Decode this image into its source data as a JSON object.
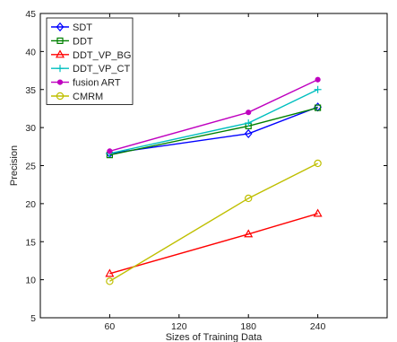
{
  "chart_data": {
    "type": "line",
    "xlabel": "Sizes of Training Data",
    "ylabel": "Precision",
    "xlim": [
      0,
      300
    ],
    "ylim": [
      5,
      45
    ],
    "xticks": [
      60,
      120,
      180,
      240
    ],
    "yticks": [
      5,
      10,
      15,
      20,
      25,
      30,
      35,
      40,
      45
    ],
    "grid": false,
    "legend_position": "top-left",
    "x": [
      60,
      180,
      240
    ],
    "series": [
      {
        "name": "SDT",
        "values": [
          26.6,
          29.2,
          32.7
        ],
        "color": "#0000ff",
        "marker": "diamond"
      },
      {
        "name": "DDT",
        "values": [
          26.4,
          30.2,
          32.6
        ],
        "color": "#008000",
        "marker": "square"
      },
      {
        "name": "DDT_VP_BG",
        "values": [
          10.8,
          16.0,
          18.7
        ],
        "color": "#ff0000",
        "marker": "triangle"
      },
      {
        "name": "DDT_VP_CT",
        "values": [
          26.6,
          30.6,
          35.0
        ],
        "color": "#00bfbf",
        "marker": "plus"
      },
      {
        "name": "fusion ART",
        "values": [
          26.9,
          32.0,
          36.3
        ],
        "color": "#bf00bf",
        "marker": "dot"
      },
      {
        "name": "CMRM",
        "values": [
          9.8,
          20.7,
          25.3
        ],
        "color": "#bfbf00",
        "marker": "circle"
      }
    ]
  }
}
